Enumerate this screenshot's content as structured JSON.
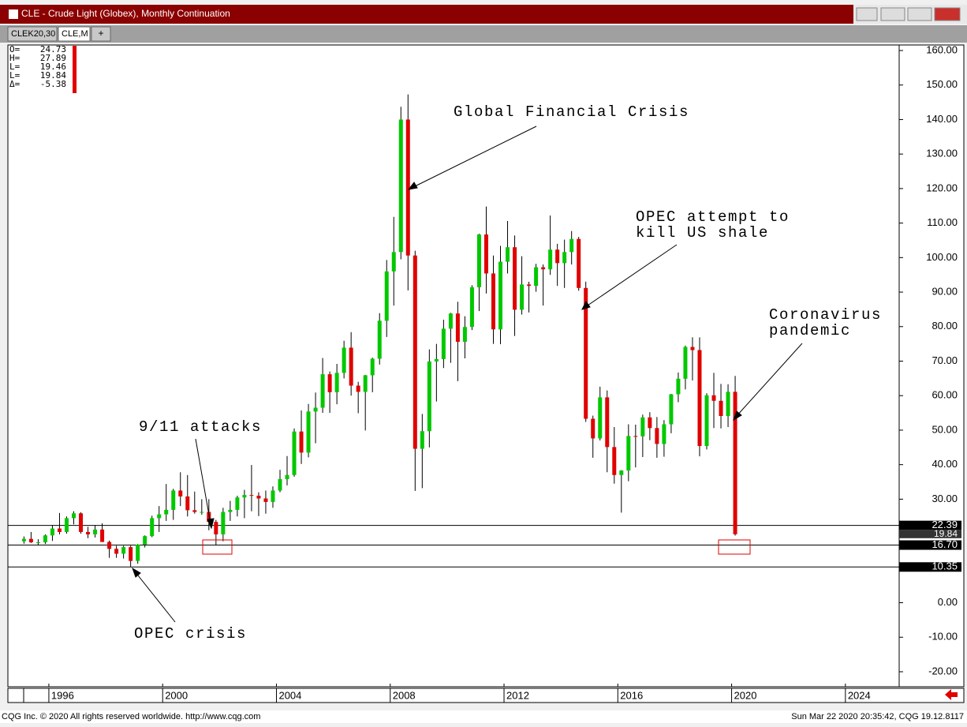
{
  "window": {
    "title": "CLE - Crude Light (Globex), Monthly Continuation",
    "tabs": [
      "CLEK20,30",
      "CLE,M",
      "+"
    ]
  },
  "readout": [
    {
      "label": "O=",
      "value": 24.73
    },
    {
      "label": "H=",
      "value": 27.89
    },
    {
      "label": "L=",
      "value": 19.46
    },
    {
      "label": "L=",
      "value": 19.84
    },
    {
      "label": "Δ=",
      "value": -5.38
    }
  ],
  "footer": {
    "left": "CQG Inc. © 2020 All rights reserved worldwide. http://www.cqg.com",
    "right": "Sun Mar 22 2020 20:35:42, CQG 19.12.8117"
  },
  "chart_data": {
    "type": "candlestick",
    "up_color": "#00c800",
    "down_color": "#e00000",
    "x": [
      1995.125,
      1995.375,
      1995.625,
      1995.875,
      1996.125,
      1996.375,
      1996.625,
      1996.875,
      1997.125,
      1997.375,
      1997.625,
      1997.875,
      1998.125,
      1998.375,
      1998.625,
      1998.875,
      1999.125,
      1999.375,
      1999.625,
      1999.875,
      2000.125,
      2000.375,
      2000.625,
      2000.875,
      2001.125,
      2001.375,
      2001.625,
      2001.875,
      2002.125,
      2002.375,
      2002.625,
      2002.875,
      2003.125,
      2003.375,
      2003.625,
      2003.875,
      2004.125,
      2004.375,
      2004.625,
      2004.875,
      2005.125,
      2005.375,
      2005.625,
      2005.875,
      2006.125,
      2006.375,
      2006.625,
      2006.875,
      2007.125,
      2007.375,
      2007.625,
      2007.875,
      2008.125,
      2008.375,
      2008.625,
      2008.875,
      2009.125,
      2009.375,
      2009.625,
      2009.875,
      2010.125,
      2010.375,
      2010.625,
      2010.875,
      2011.125,
      2011.375,
      2011.625,
      2011.875,
      2012.125,
      2012.375,
      2012.625,
      2012.875,
      2013.125,
      2013.375,
      2013.625,
      2013.875,
      2014.125,
      2014.375,
      2014.625,
      2014.875,
      2015.125,
      2015.375,
      2015.625,
      2015.875,
      2016.125,
      2016.375,
      2016.625,
      2016.875,
      2017.125,
      2017.375,
      2017.625,
      2017.875,
      2018.125,
      2018.375,
      2018.625,
      2018.875,
      2019.125,
      2019.375,
      2019.625,
      2019.875,
      2020.125
    ],
    "open": [
      17.8,
      18.5,
      17.5,
      17.5,
      19.5,
      21.5,
      20.5,
      24.5,
      25.9,
      20.5,
      19.8,
      21.2,
      17.6,
      15.6,
      14.2,
      16.1,
      12.1,
      16.8,
      19.3,
      24.5,
      25.6,
      26.9,
      32.5,
      30.8,
      26.8,
      26.3,
      26.3,
      23.4,
      19.8,
      26.3,
      26.9,
      30.5,
      31.2,
      31.0,
      30.2,
      29.2,
      32.5,
      35.8,
      37.0,
      49.6,
      43.5,
      55.4,
      56.5,
      66.2,
      61.0,
      66.6,
      73.9,
      62.9,
      61.1,
      65.9,
      70.7,
      81.7,
      96.0,
      101.6,
      140.0,
      100.6,
      44.6,
      49.7,
      69.9,
      70.6,
      79.4,
      83.8,
      75.6,
      79.9,
      91.4,
      106.7,
      95.4,
      79.2,
      98.8,
      103.0,
      84.9,
      92.2,
      91.8,
      97.2,
      96.6,
      102.3,
      98.4,
      101.6,
      105.4,
      91.2,
      53.3,
      47.6,
      59.5,
      45.1,
      37.0,
      38.3,
      48.3,
      48.2,
      53.7,
      50.6,
      46.0,
      51.7,
      60.4,
      64.9,
      74.1,
      73.2,
      45.4,
      60.1,
      58.5,
      54.1,
      61.1
    ],
    "high": [
      19.2,
      20.5,
      18.4,
      19.8,
      22.5,
      26.0,
      25.0,
      26.5,
      26.2,
      22.0,
      22.5,
      23.0,
      18.0,
      16.5,
      16.5,
      16.5,
      17.0,
      19.5,
      25.2,
      28.0,
      34.4,
      33.0,
      37.8,
      37.0,
      32.2,
      30.0,
      30.0,
      24.0,
      27.5,
      29.5,
      31.0,
      32.7,
      39.9,
      32.0,
      32.5,
      33.7,
      38.5,
      42.5,
      50.5,
      55.7,
      57.6,
      60.9,
      70.9,
      67.0,
      69.2,
      75.9,
      78.4,
      64.0,
      66.0,
      71.0,
      83.9,
      99.3,
      111.8,
      143.7,
      147.27,
      102.0,
      54.7,
      73.4,
      75.0,
      82.0,
      84.0,
      87.2,
      83.0,
      92.0,
      106.9,
      114.8,
      100.6,
      103.4,
      110.6,
      106.4,
      100.4,
      93.0,
      98.2,
      98.0,
      112.2,
      104.0,
      105.2,
      107.7,
      106.0,
      93.0,
      54.2,
      62.6,
      61.5,
      50.9,
      38.4,
      51.7,
      51.6,
      54.5,
      55.2,
      53.8,
      52.9,
      60.5,
      66.7,
      74.5,
      76.9,
      76.9,
      60.7,
      66.6,
      63.4,
      63.3,
      65.7
    ],
    "low": [
      17.1,
      17.3,
      16.7,
      17.0,
      17.9,
      19.8,
      20.0,
      22.7,
      20.0,
      18.7,
      18.9,
      17.6,
      13.0,
      13.0,
      12.8,
      10.35,
      11.3,
      16.0,
      19.0,
      20.5,
      23.7,
      24.0,
      28.0,
      25.0,
      25.8,
      25.5,
      21.0,
      16.7,
      17.8,
      23.7,
      25.0,
      24.5,
      26.5,
      25.1,
      25.8,
      27.5,
      32.0,
      34.0,
      36.5,
      40.2,
      42.1,
      46.2,
      55.0,
      55.0,
      57.5,
      65.0,
      60.0,
      54.9,
      49.9,
      61.0,
      69.0,
      77.0,
      86.1,
      99.5,
      90.5,
      32.4,
      33.2,
      45.0,
      58.3,
      68.0,
      69.5,
      64.2,
      70.8,
      79.0,
      84.5,
      89.6,
      75.0,
      74.9,
      95.4,
      77.3,
      83.5,
      84.1,
      90.1,
      86.1,
      95.0,
      91.8,
      91.2,
      98.0,
      90.4,
      52.4,
      42.0,
      47.0,
      37.8,
      34.5,
      26.1,
      35.2,
      39.2,
      42.2,
      47.1,
      42.0,
      42.3,
      49.1,
      58.1,
      61.8,
      64.4,
      42.4,
      44.4,
      50.6,
      50.5,
      50.9,
      19.46
    ],
    "close": [
      18.5,
      17.5,
      17.5,
      19.5,
      21.5,
      20.5,
      24.5,
      25.9,
      20.5,
      19.8,
      21.2,
      17.6,
      15.6,
      14.2,
      16.1,
      12.1,
      16.8,
      19.3,
      24.5,
      25.6,
      26.9,
      32.5,
      30.8,
      26.8,
      26.3,
      26.3,
      23.4,
      19.8,
      26.3,
      26.9,
      30.5,
      31.2,
      31.0,
      30.2,
      29.2,
      32.5,
      35.8,
      37.0,
      49.6,
      43.5,
      55.4,
      56.5,
      66.2,
      61.0,
      66.6,
      73.9,
      62.9,
      61.1,
      65.9,
      70.7,
      81.7,
      96.0,
      101.6,
      140.0,
      100.6,
      44.6,
      49.7,
      69.9,
      70.6,
      79.4,
      83.8,
      75.6,
      79.9,
      91.4,
      106.7,
      95.4,
      79.2,
      98.8,
      103.0,
      84.9,
      92.2,
      91.8,
      97.2,
      96.6,
      102.3,
      98.4,
      101.6,
      105.4,
      91.2,
      53.3,
      47.6,
      59.5,
      45.1,
      37.0,
      38.3,
      48.3,
      48.2,
      53.7,
      50.6,
      46.0,
      51.7,
      60.4,
      64.9,
      74.1,
      73.2,
      45.4,
      60.1,
      58.5,
      54.1,
      61.1,
      19.84
    ],
    "xlim": [
      1994.56,
      2025.89
    ],
    "xticks": [
      1996,
      2000,
      2004,
      2008,
      2012,
      2016,
      2020,
      2024
    ],
    "ylim": [
      -24.35,
      161.6
    ],
    "yticks": [
      {
        "value": 160,
        "label": "160.00"
      },
      {
        "value": 150,
        "label": "150.00"
      },
      {
        "value": 140,
        "label": "140.00"
      },
      {
        "value": 130,
        "label": "130.00"
      },
      {
        "value": 120,
        "label": "120.00"
      },
      {
        "value": 110,
        "label": "110.00"
      },
      {
        "value": 100,
        "label": "100.00"
      },
      {
        "value": 90,
        "label": "90.00"
      },
      {
        "value": 80,
        "label": "80.00"
      },
      {
        "value": 70,
        "label": "70.00"
      },
      {
        "value": 60,
        "label": "60.00"
      },
      {
        "value": 50,
        "label": "50.00"
      },
      {
        "value": 40,
        "label": "40.00"
      },
      {
        "value": 30,
        "label": "30.00"
      },
      {
        "value": 0,
        "label": "0.00"
      },
      {
        "value": -10,
        "label": "-10.00"
      },
      {
        "value": -20,
        "label": "-20.00"
      }
    ],
    "price_lines": [
      22.39,
      {
        "value": 16.7,
        "label": "16.70"
      },
      10.35
    ],
    "last_price": 19.84,
    "annotations": [
      "Global Financial Crisis",
      "OPEC attempt to",
      "kill US shale",
      "Coronavirus",
      "pandemic",
      "9/11 attacks",
      "OPEC crisis"
    ]
  }
}
